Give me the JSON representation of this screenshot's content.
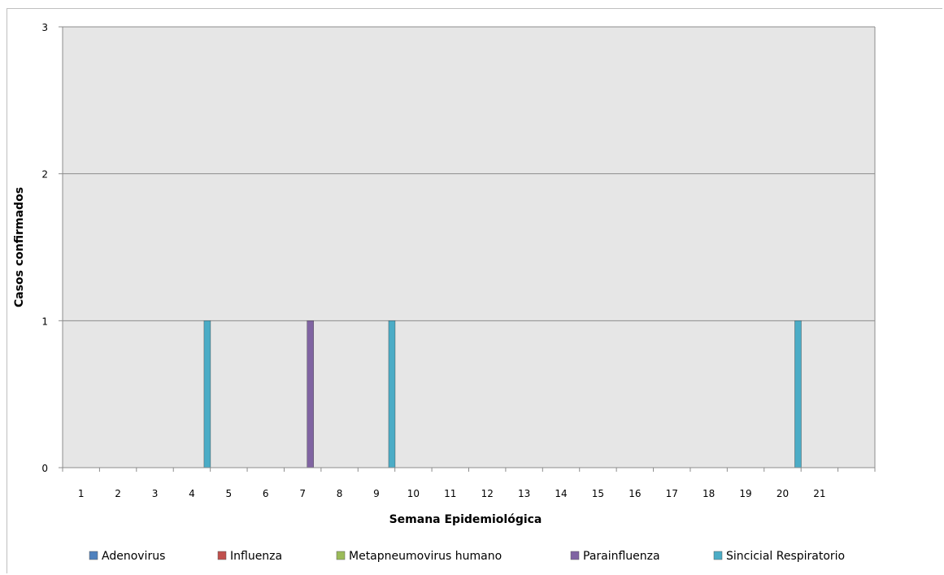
{
  "chart_data": {
    "type": "bar",
    "title": "",
    "xlabel": "Semana Epidemiológica",
    "ylabel": "Casos confirmados",
    "categories": [
      "1",
      "2",
      "3",
      "4",
      "5",
      "6",
      "7",
      "8",
      "9",
      "10",
      "11",
      "12",
      "13",
      "14",
      "15",
      "16",
      "17",
      "18",
      "19",
      "20",
      "21",
      ""
    ],
    "ylim": [
      0,
      3
    ],
    "yticks": [
      "0",
      "1",
      "2",
      "3"
    ],
    "grid": true,
    "legend_position": "bottom",
    "series": [
      {
        "name": "Adenovirus",
        "color": "#4f81bd",
        "values": [
          0,
          0,
          0,
          0,
          0,
          0,
          0,
          0,
          0,
          0,
          0,
          0,
          0,
          0,
          0,
          0,
          0,
          0,
          0,
          0,
          0,
          0
        ]
      },
      {
        "name": "Influenza",
        "color": "#c0504d",
        "values": [
          0,
          0,
          0,
          0,
          0,
          0,
          0,
          0,
          0,
          0,
          0,
          0,
          0,
          0,
          0,
          0,
          0,
          0,
          0,
          0,
          0,
          0
        ]
      },
      {
        "name": "Metapneumovirus humano",
        "color": "#9bbb59",
        "values": [
          0,
          0,
          0,
          0,
          0,
          0,
          0,
          0,
          0,
          0,
          0,
          0,
          0,
          0,
          0,
          0,
          0,
          0,
          0,
          0,
          0,
          0
        ]
      },
      {
        "name": "Parainfluenza",
        "color": "#8064a2",
        "values": [
          0,
          0,
          0,
          0,
          0,
          0,
          1,
          0,
          0,
          0,
          0,
          0,
          0,
          0,
          0,
          0,
          0,
          0,
          0,
          0,
          0,
          0
        ]
      },
      {
        "name": "Sincicial Respiratorio",
        "color": "#4bacc6",
        "values": [
          0,
          0,
          0,
          1,
          0,
          0,
          0,
          0,
          1,
          0,
          0,
          0,
          0,
          0,
          0,
          0,
          0,
          0,
          0,
          1,
          0,
          0
        ]
      }
    ]
  }
}
